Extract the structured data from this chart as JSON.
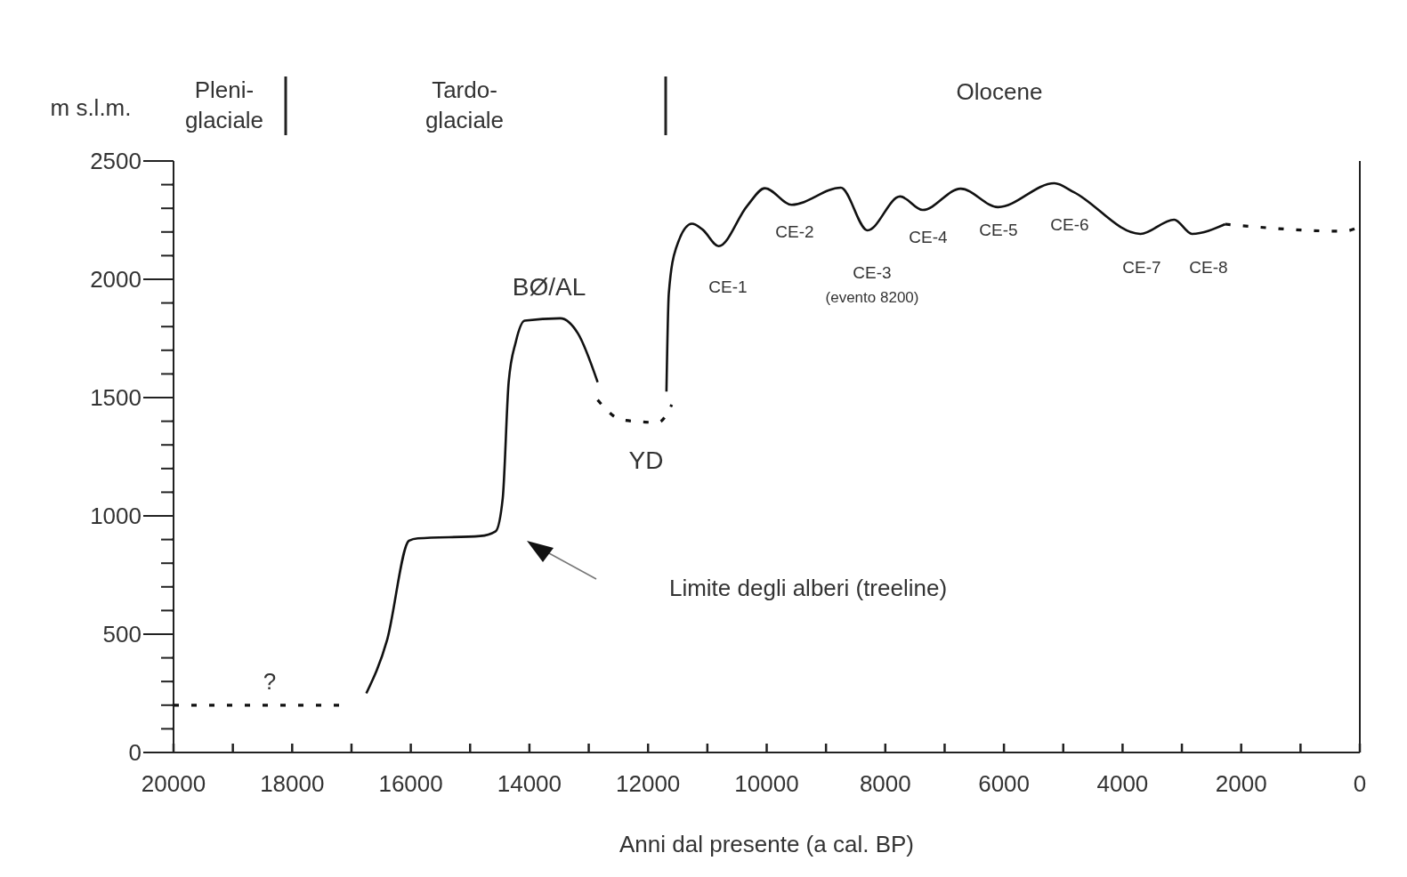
{
  "chart_data": {
    "type": "line",
    "xlabel": "Anni dal presente (a cal. BP)",
    "ylabel": "m s.l.m.",
    "xlim": [
      20000,
      0
    ],
    "ylim": [
      0,
      2500
    ],
    "xticks": [
      20000,
      {
        "value": 19000,
        "label": null
      },
      18000,
      {
        "value": 17000,
        "label": null
      },
      16000,
      {
        "value": 15000,
        "label": null
      },
      14000,
      {
        "value": 13000,
        "label": null
      },
      12000,
      {
        "value": 11000,
        "label": null
      },
      10000,
      {
        "value": 9000,
        "label": null
      },
      8000,
      {
        "value": 7000,
        "label": null
      },
      6000,
      {
        "value": 5000,
        "label": null
      },
      4000,
      {
        "value": 3000,
        "label": null
      },
      2000,
      {
        "value": 1000,
        "label": null
      },
      0
    ],
    "yticks": [
      0,
      {
        "value": 100,
        "label": null
      },
      {
        "value": 200,
        "label": null
      },
      {
        "value": 300,
        "label": null
      },
      {
        "value": 400,
        "label": null
      },
      500,
      {
        "value": 600,
        "label": null
      },
      {
        "value": 700,
        "label": null
      },
      {
        "value": 800,
        "label": null
      },
      {
        "value": 900,
        "label": null
      },
      1000,
      {
        "value": 1100,
        "label": null
      },
      {
        "value": 1200,
        "label": null
      },
      {
        "value": 1300,
        "label": null
      },
      {
        "value": 1400,
        "label": null
      },
      1500,
      {
        "value": 1600,
        "label": null
      },
      {
        "value": 1700,
        "label": null
      },
      {
        "value": 1800,
        "label": null
      },
      {
        "value": 1900,
        "label": null
      },
      2000,
      {
        "value": 2100,
        "label": null
      },
      {
        "value": 2200,
        "label": null
      },
      {
        "value": 2300,
        "label": null
      },
      {
        "value": 2400,
        "label": null
      },
      2500
    ],
    "grid": false,
    "marker": "none",
    "series": [
      {
        "color": "#111111",
        "line_style": "dashed",
        "x": [
          20000,
          17200
        ],
        "values": [
          200,
          200
        ]
      },
      {
        "color": "#111111",
        "line_style": "solid",
        "x": [
          16750,
          16400,
          16030,
          15880,
          14830,
          14570,
          14450,
          14350,
          14230,
          14080,
          13480,
          13180,
          12850
        ],
        "values": [
          250,
          475,
          895,
          905,
          915,
          935,
          1075,
          1565,
          1735,
          1825,
          1835,
          1770,
          1565
        ]
      },
      {
        "color": "#111111",
        "line_style": "dashed",
        "x": [
          12850,
          12430,
          11830,
          11600
        ],
        "values": [
          1490,
          1405,
          1395,
          1470
        ]
      },
      {
        "color": "#111111",
        "line_style": "solid",
        "x": [
          11690,
          11650,
          11530,
          11260,
          11080,
          10810,
          10330,
          10030,
          9580,
          8750,
          8300,
          7750,
          7370,
          6730,
          6100,
          5150,
          4820,
          3700,
          3130,
          2830,
          2270
        ],
        "values": [
          1525,
          1940,
          2130,
          2235,
          2210,
          2140,
          2310,
          2385,
          2315,
          2387,
          2207,
          2350,
          2293,
          2383,
          2305,
          2406,
          2368,
          2192,
          2252,
          2192,
          2233
        ]
      },
      {
        "color": "#111111",
        "line_style": "dashed",
        "x": [
          2270,
          270,
          0
        ],
        "values": [
          2233,
          2203,
          2222
        ]
      }
    ],
    "annotations": [
      "Pleni-\nglaciale",
      "Tardo-\nglaciale",
      "Olocene",
      "BØ/AL",
      "YD",
      "?",
      "Limite degli alberi (treeline)",
      "CE-1",
      "CE-2",
      "CE-3",
      "(evento 8200)",
      "CE-4",
      "CE-5",
      "CE-6",
      "CE-7",
      "CE-8"
    ]
  }
}
